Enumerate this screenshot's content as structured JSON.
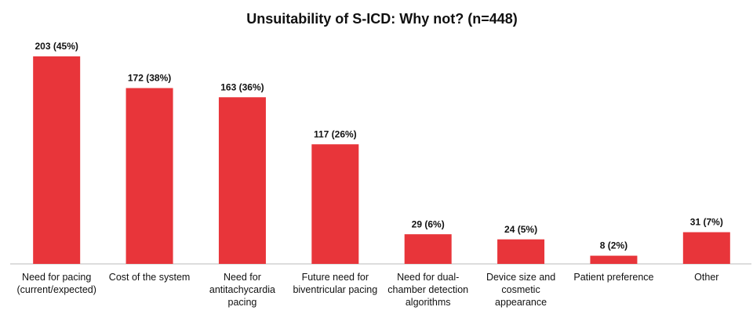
{
  "chart_data": {
    "type": "bar",
    "title": "Unsuitability of S-ICD: Why not? (n=448)",
    "categories": [
      "Need for pacing (current/expected)",
      "Cost of the system",
      "Need for antitachycardia pacing",
      "Future need for biventricular pacing",
      "Need for dual-chamber detection algorithms",
      "Device size and cosmetic appearance",
      "Patient preference",
      "Other"
    ],
    "values": [
      203,
      172,
      163,
      117,
      29,
      24,
      8,
      31
    ],
    "value_labels": [
      "203 (45%)",
      "172 (38%)",
      "163 (36%)",
      "117 (26%)",
      "29 (6%)",
      "24 (5%)",
      "8 (2%)",
      "31 (7%)"
    ],
    "color": "#e8353a"
  }
}
